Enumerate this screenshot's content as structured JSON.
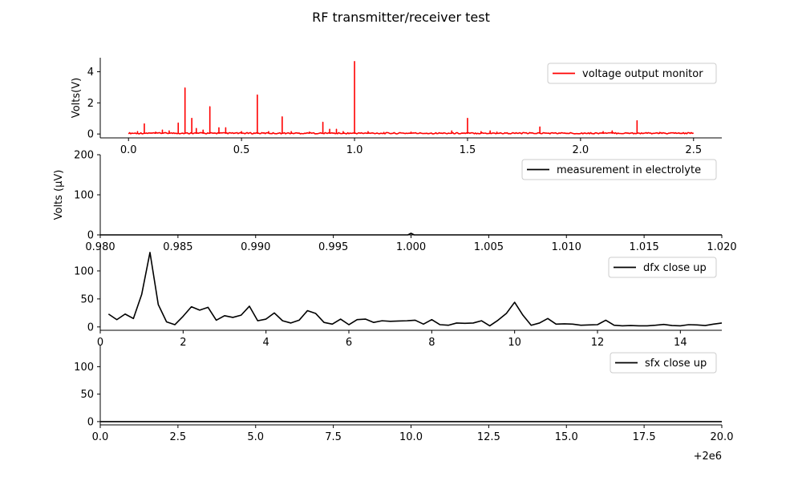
{
  "title": "RF transmitter/receiver test",
  "chart_data": [
    {
      "type": "line",
      "ylabel": "Volts(V)",
      "xlim": [
        -0.125,
        2.625
      ],
      "ylim": [
        -0.25,
        4.9
      ],
      "xticks": [
        0.0,
        0.5,
        1.0,
        1.5,
        2.0,
        2.5
      ],
      "xtick_labels": [
        "0.0",
        "0.5",
        "1.0",
        "1.5",
        "2.0",
        "2.5"
      ],
      "yticks": [
        0,
        2,
        4
      ],
      "ytick_labels": [
        "0",
        "2",
        "4"
      ],
      "legend_position": "upper right",
      "series": [
        {
          "name": "voltage output monitor",
          "color": "#ff0000",
          "baseline": 0.05,
          "x_range": [
            0.0,
            2.5
          ],
          "spikes": [
            [
              0.04,
              0.15
            ],
            [
              0.07,
              0.65
            ],
            [
              0.12,
              0.12
            ],
            [
              0.15,
              0.25
            ],
            [
              0.18,
              0.2
            ],
            [
              0.22,
              0.7
            ],
            [
              0.25,
              2.95
            ],
            [
              0.28,
              1.0
            ],
            [
              0.3,
              0.35
            ],
            [
              0.33,
              0.25
            ],
            [
              0.36,
              1.75
            ],
            [
              0.4,
              0.4
            ],
            [
              0.43,
              0.4
            ],
            [
              0.5,
              0.15
            ],
            [
              0.57,
              2.5
            ],
            [
              0.62,
              0.15
            ],
            [
              0.68,
              1.1
            ],
            [
              0.72,
              0.15
            ],
            [
              0.8,
              0.12
            ],
            [
              0.86,
              0.75
            ],
            [
              0.89,
              0.3
            ],
            [
              0.92,
              0.3
            ],
            [
              0.95,
              0.15
            ],
            [
              1.0,
              4.65
            ],
            [
              1.06,
              0.15
            ],
            [
              1.13,
              0.1
            ],
            [
              1.25,
              0.12
            ],
            [
              1.43,
              0.2
            ],
            [
              1.5,
              1.0
            ],
            [
              1.56,
              0.15
            ],
            [
              1.6,
              0.2
            ],
            [
              1.63,
              0.12
            ],
            [
              1.82,
              0.45
            ],
            [
              2.1,
              0.15
            ],
            [
              2.14,
              0.2
            ],
            [
              2.25,
              0.85
            ],
            [
              2.35,
              0.1
            ]
          ]
        }
      ]
    },
    {
      "type": "line",
      "ylabel": "Volts ($\\mu$V)",
      "ylabel_display": "Volts (μV)",
      "xlim": [
        0.98,
        1.02
      ],
      "ylim": [
        0,
        200
      ],
      "xticks": [
        0.98,
        0.985,
        0.99,
        0.995,
        1.0,
        1.005,
        1.01,
        1.015,
        1.02
      ],
      "xtick_labels": [
        "0.980",
        "0.985",
        "0.990",
        "0.995",
        "1.000",
        "1.005",
        "1.010",
        "1.015",
        "1.020"
      ],
      "yticks": [
        0,
        100,
        200
      ],
      "ytick_labels": [
        "0",
        "100",
        "200"
      ],
      "legend_position": "upper right",
      "series": [
        {
          "name": "measurement in electrolyte",
          "color": "#000000",
          "x": [
            0.98,
            0.9998,
            1.0,
            1.0002,
            1.02
          ],
          "y": [
            0,
            0,
            4,
            0,
            0
          ]
        }
      ]
    },
    {
      "type": "line",
      "xlim": [
        0,
        15
      ],
      "ylim": [
        -6,
        140
      ],
      "xticks": [
        0,
        2,
        4,
        6,
        8,
        10,
        12,
        14
      ],
      "xtick_labels": [
        "0",
        "2",
        "4",
        "6",
        "8",
        "10",
        "12",
        "14"
      ],
      "yticks": [
        0,
        50,
        100
      ],
      "ytick_labels": [
        "0",
        "50",
        "100"
      ],
      "legend_position": "upper right",
      "series": [
        {
          "name": "dfx close up",
          "color": "#000000",
          "x": [
            0.2,
            0.4,
            0.6,
            0.8,
            1.0,
            1.2,
            1.4,
            1.6,
            1.8,
            2.0,
            2.2,
            2.4,
            2.6,
            2.8,
            3.0,
            3.2,
            3.4,
            3.6,
            3.8,
            4.0,
            4.2,
            4.4,
            4.6,
            4.8,
            5.0,
            5.2,
            5.4,
            5.6,
            5.8,
            6.0,
            6.2,
            6.4,
            6.6,
            6.8,
            7.0,
            7.2,
            7.4,
            7.6,
            7.8,
            8.0,
            8.2,
            8.4,
            8.6,
            8.8,
            9.0,
            9.2,
            9.4,
            9.6,
            9.8,
            10.0,
            10.2,
            10.4,
            10.6,
            10.8,
            11.0,
            11.2,
            11.4,
            11.6,
            11.8,
            12.0,
            12.2,
            12.4,
            12.6,
            12.8,
            13.0,
            13.2,
            13.4,
            13.6,
            13.8,
            14.0,
            14.2,
            14.4,
            14.6,
            14.8,
            15.0
          ],
          "y": [
            23,
            13,
            23,
            15,
            58,
            133,
            40,
            9,
            4,
            19,
            36,
            30,
            35,
            12,
            20,
            17,
            21,
            37,
            11,
            14,
            25,
            11,
            7,
            12,
            29,
            24,
            8,
            5,
            14,
            4,
            13,
            14,
            8,
            11,
            10,
            10.5,
            11,
            12,
            5,
            13,
            4,
            3,
            7,
            6.5,
            7,
            11,
            2,
            12,
            24,
            44,
            21,
            3,
            7,
            15,
            5,
            5.5,
            5,
            3,
            3.5,
            4,
            12,
            3,
            2,
            2.5,
            2,
            2,
            3,
            4.5,
            2.5,
            2,
            4,
            3.5,
            2.5,
            5,
            7
          ]
        }
      ]
    },
    {
      "type": "line",
      "xlim": [
        0,
        20
      ],
      "ylim": [
        -6,
        140
      ],
      "xticks": [
        0,
        2.5,
        5,
        7.5,
        10,
        12.5,
        15,
        17.5,
        20
      ],
      "xtick_labels": [
        "0.0",
        "2.5",
        "5.0",
        "7.5",
        "10.0",
        "12.5",
        "15.0",
        "17.5",
        "20.0"
      ],
      "x_offset_label": "+2e6",
      "yticks": [
        0,
        50,
        100
      ],
      "ytick_labels": [
        "0",
        "50",
        "100"
      ],
      "legend_position": "upper right",
      "series": [
        {
          "name": "sfx close up",
          "color": "#000000",
          "x": [
            0,
            20
          ],
          "y": [
            0,
            0
          ]
        }
      ]
    }
  ]
}
